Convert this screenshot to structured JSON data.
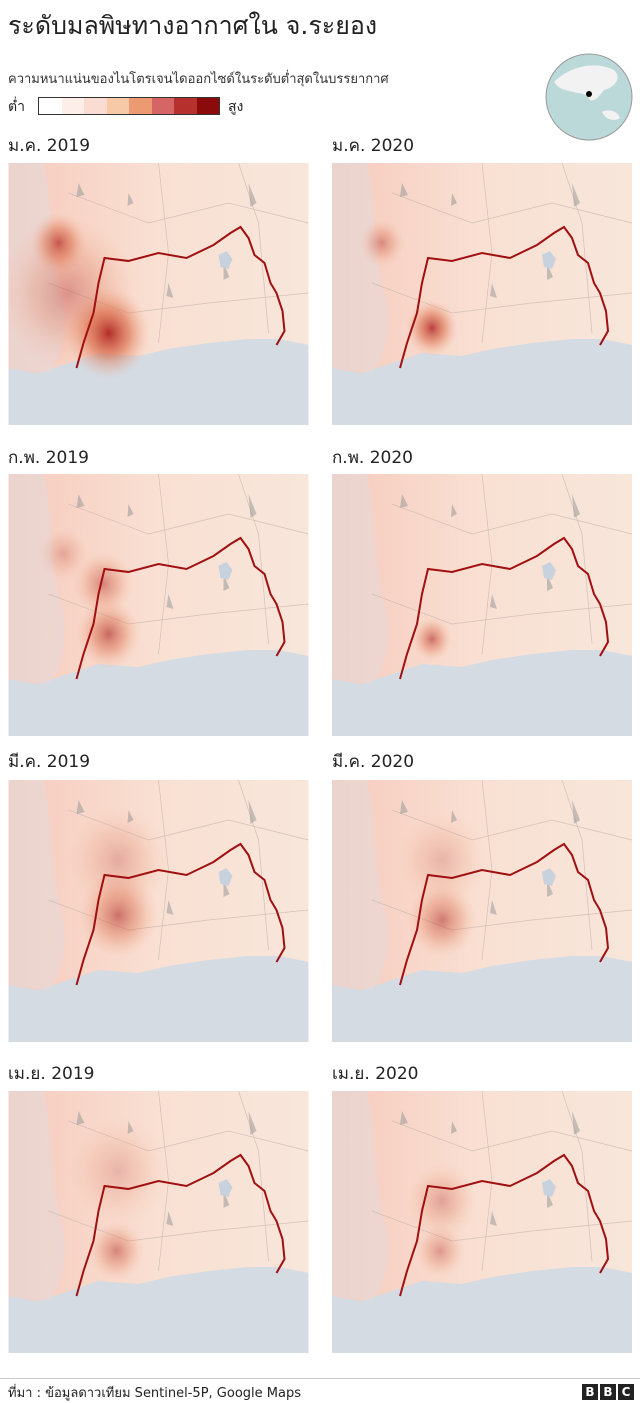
{
  "header": {
    "title": "ระดับมลพิษทางอากาศใน จ.ระยอง",
    "subtitle": "ความหนาแน่นของไนโตรเจนไดออกไซด์ในระดับต่ำสุดในบรรยากาศ"
  },
  "legend": {
    "low": "ต่ำ",
    "high": "สูง",
    "colors": [
      "#ffffff",
      "#fdeeea",
      "#fbdcd2",
      "#f8c9a6",
      "#eb9a72",
      "#d66665",
      "#b6302e",
      "#8b0a0a"
    ]
  },
  "panels": [
    {
      "label": "ม.ค. 2019"
    },
    {
      "label": "ม.ค. 2020"
    },
    {
      "label": "ก.พ. 2019"
    },
    {
      "label": "ก.พ. 2020"
    },
    {
      "label": "มี.ค. 2019"
    },
    {
      "label": "มี.ค. 2020"
    },
    {
      "label": "เม.ย. 2019"
    },
    {
      "label": "เม.ย. 2020"
    }
  ],
  "footer": {
    "source": "ที่มา : ข้อมูลดาวเทียม Sentinel-5P, Google Maps",
    "logo": [
      "B",
      "B",
      "C"
    ]
  }
}
